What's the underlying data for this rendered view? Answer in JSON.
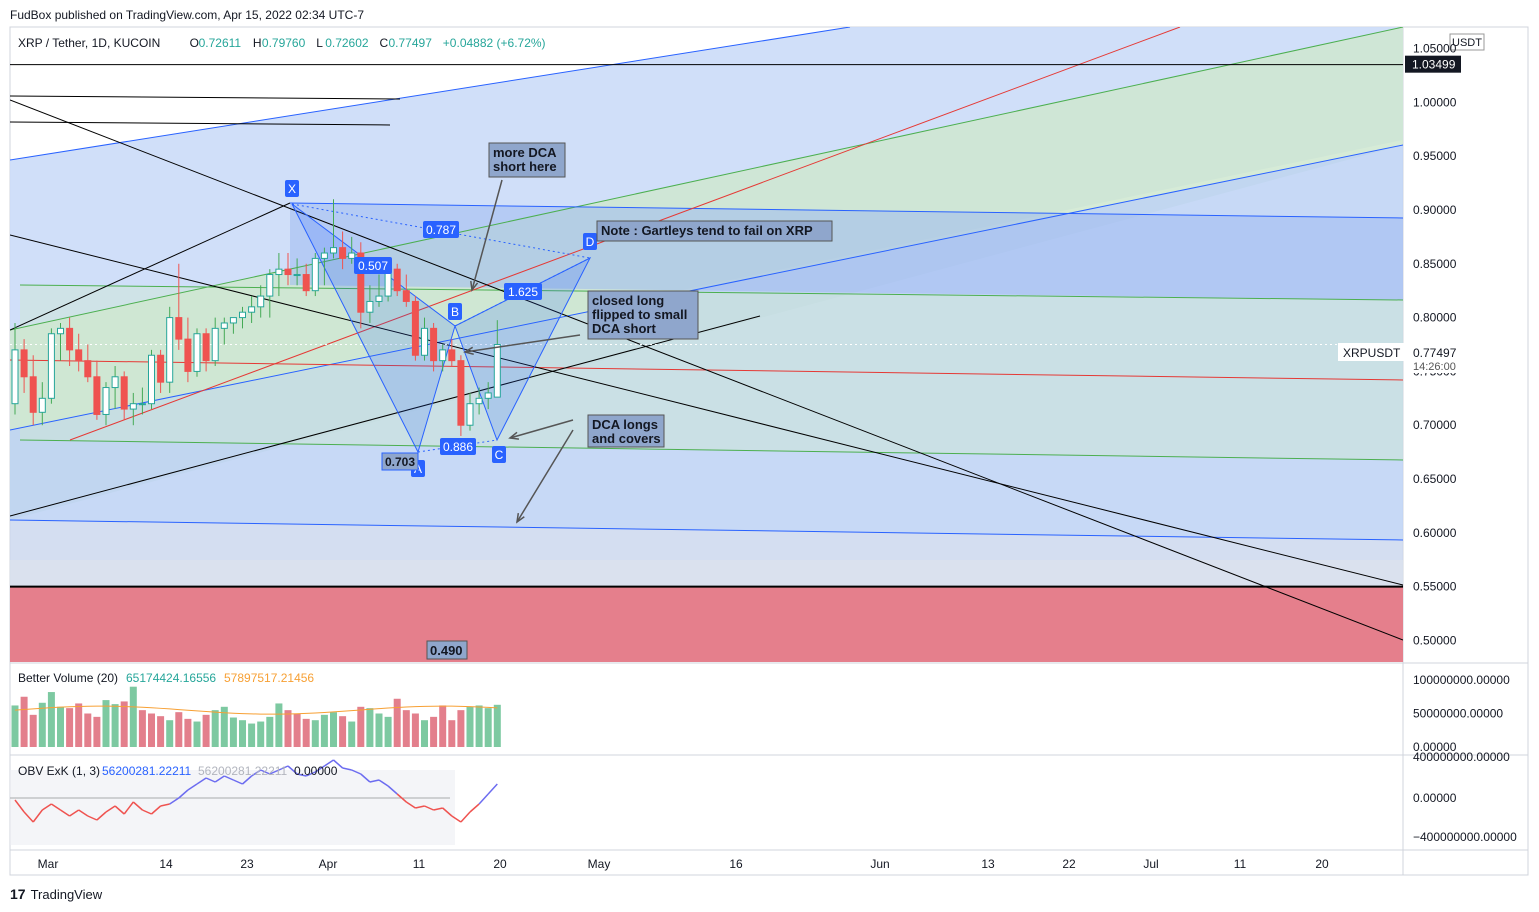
{
  "header": {
    "published": "FudBox published on TradingView.com, Apr 15, 2022 02:34 UTC-7"
  },
  "footer": {
    "brand": "TradingView",
    "logo_glyph": "17"
  },
  "legend": {
    "symbol": "XRP / Tether, 1D, KUCOIN",
    "open_label": "O",
    "open": "0.72611",
    "high_label": "H",
    "high": "0.79760",
    "low_label": "L",
    "low": "0.72602",
    "close_label": "C",
    "close": "0.77497",
    "change": "+0.04882 (+6.72%)"
  },
  "price_axis": {
    "currency": "USDT",
    "ticks": [
      "1.05000",
      "1.00000",
      "0.95000",
      "0.90000",
      "0.85000",
      "0.80000",
      "0.75000",
      "0.70000",
      "0.65000",
      "0.60000",
      "0.55000",
      "0.50000"
    ],
    "line_tag": "1.03499",
    "symbol_tag": "XRPUSDT",
    "last_price": "0.77497",
    "countdown": "14:26:00"
  },
  "time_axis": {
    "ticks": [
      "Mar",
      "14",
      "23",
      "Apr",
      "11",
      "20",
      "May",
      "16",
      "Jun",
      "13",
      "22",
      "Jul",
      "11",
      "20"
    ]
  },
  "pattern_points": {
    "x": "X",
    "a": "A",
    "b": "B",
    "c": "C",
    "d": "D"
  },
  "ratios": {
    "xb": "0.787",
    "ab": "0.507",
    "bd": "1.625",
    "ac": "0.886",
    "a_price": "0.703"
  },
  "zone_label": "0.490",
  "annotations": {
    "more_dca_1": "more DCA",
    "more_dca_2": "short here",
    "note": "Note : Gartleys tend to fail on XRP",
    "closed_1": "closed long",
    "closed_2": "flipped to small",
    "closed_3": "DCA short",
    "dca_longs_1": "DCA longs",
    "dca_longs_2": "and covers"
  },
  "volume_panel": {
    "title": "Better Volume (20)",
    "value1": "65174424.16556",
    "value2": "57897517.21456",
    "ticks": [
      "100000000.00000",
      "50000000.00000",
      "0.00000"
    ]
  },
  "obv_panel": {
    "title": "OBV ExK (1, 3)",
    "value1": "56200281.22211",
    "value2": "56200281.22211",
    "value3": "0.00000",
    "ticks": [
      "400000000.00000",
      "0.00000",
      "−400000000.00000"
    ]
  },
  "colors": {
    "up": "#26a69a",
    "down": "#ef5350",
    "vol_up": "#7dc9a1",
    "vol_down": "#e37f8c",
    "label_blue": "#2962ff"
  },
  "chart_data": {
    "type": "candlestick",
    "candles": [
      {
        "o": 0.72,
        "h": 0.795,
        "l": 0.71,
        "c": 0.77
      },
      {
        "o": 0.77,
        "h": 0.78,
        "l": 0.73,
        "c": 0.745
      },
      {
        "o": 0.745,
        "h": 0.765,
        "l": 0.7,
        "c": 0.712
      },
      {
        "o": 0.712,
        "h": 0.74,
        "l": 0.7,
        "c": 0.725
      },
      {
        "o": 0.725,
        "h": 0.79,
        "l": 0.72,
        "c": 0.785
      },
      {
        "o": 0.785,
        "h": 0.795,
        "l": 0.76,
        "c": 0.79
      },
      {
        "o": 0.79,
        "h": 0.8,
        "l": 0.755,
        "c": 0.77
      },
      {
        "o": 0.77,
        "h": 0.785,
        "l": 0.75,
        "c": 0.76
      },
      {
        "o": 0.76,
        "h": 0.775,
        "l": 0.74,
        "c": 0.745
      },
      {
        "o": 0.745,
        "h": 0.76,
        "l": 0.705,
        "c": 0.71
      },
      {
        "o": 0.71,
        "h": 0.74,
        "l": 0.7,
        "c": 0.735
      },
      {
        "o": 0.735,
        "h": 0.755,
        "l": 0.715,
        "c": 0.745
      },
      {
        "o": 0.745,
        "h": 0.75,
        "l": 0.705,
        "c": 0.715
      },
      {
        "o": 0.715,
        "h": 0.73,
        "l": 0.7,
        "c": 0.72
      },
      {
        "o": 0.72,
        "h": 0.735,
        "l": 0.71,
        "c": 0.72
      },
      {
        "o": 0.72,
        "h": 0.77,
        "l": 0.715,
        "c": 0.765
      },
      {
        "o": 0.765,
        "h": 0.77,
        "l": 0.73,
        "c": 0.74
      },
      {
        "o": 0.74,
        "h": 0.81,
        "l": 0.73,
        "c": 0.8
      },
      {
        "o": 0.8,
        "h": 0.85,
        "l": 0.77,
        "c": 0.78
      },
      {
        "o": 0.78,
        "h": 0.8,
        "l": 0.74,
        "c": 0.75
      },
      {
        "o": 0.75,
        "h": 0.79,
        "l": 0.745,
        "c": 0.785
      },
      {
        "o": 0.785,
        "h": 0.79,
        "l": 0.75,
        "c": 0.76
      },
      {
        "o": 0.76,
        "h": 0.8,
        "l": 0.755,
        "c": 0.79
      },
      {
        "o": 0.79,
        "h": 0.8,
        "l": 0.775,
        "c": 0.795
      },
      {
        "o": 0.795,
        "h": 0.8,
        "l": 0.785,
        "c": 0.8
      },
      {
        "o": 0.8,
        "h": 0.81,
        "l": 0.79,
        "c": 0.805
      },
      {
        "o": 0.805,
        "h": 0.82,
        "l": 0.795,
        "c": 0.81
      },
      {
        "o": 0.81,
        "h": 0.83,
        "l": 0.8,
        "c": 0.82
      },
      {
        "o": 0.82,
        "h": 0.845,
        "l": 0.8,
        "c": 0.84
      },
      {
        "o": 0.84,
        "h": 0.86,
        "l": 0.82,
        "c": 0.845
      },
      {
        "o": 0.845,
        "h": 0.86,
        "l": 0.83,
        "c": 0.84
      },
      {
        "o": 0.84,
        "h": 0.855,
        "l": 0.83,
        "c": 0.84
      },
      {
        "o": 0.84,
        "h": 0.85,
        "l": 0.82,
        "c": 0.825
      },
      {
        "o": 0.825,
        "h": 0.86,
        "l": 0.82,
        "c": 0.855
      },
      {
        "o": 0.855,
        "h": 0.865,
        "l": 0.83,
        "c": 0.86
      },
      {
        "o": 0.86,
        "h": 0.91,
        "l": 0.855,
        "c": 0.865
      },
      {
        "o": 0.865,
        "h": 0.88,
        "l": 0.845,
        "c": 0.855
      },
      {
        "o": 0.855,
        "h": 0.875,
        "l": 0.85,
        "c": 0.86
      },
      {
        "o": 0.86,
        "h": 0.87,
        "l": 0.79,
        "c": 0.805
      },
      {
        "o": 0.805,
        "h": 0.83,
        "l": 0.795,
        "c": 0.815
      },
      {
        "o": 0.815,
        "h": 0.84,
        "l": 0.81,
        "c": 0.82
      },
      {
        "o": 0.82,
        "h": 0.85,
        "l": 0.815,
        "c": 0.845
      },
      {
        "o": 0.845,
        "h": 0.85,
        "l": 0.82,
        "c": 0.825
      },
      {
        "o": 0.825,
        "h": 0.84,
        "l": 0.81,
        "c": 0.815
      },
      {
        "o": 0.815,
        "h": 0.82,
        "l": 0.76,
        "c": 0.765
      },
      {
        "o": 0.765,
        "h": 0.8,
        "l": 0.76,
        "c": 0.79
      },
      {
        "o": 0.79,
        "h": 0.795,
        "l": 0.75,
        "c": 0.76
      },
      {
        "o": 0.76,
        "h": 0.775,
        "l": 0.75,
        "c": 0.77
      },
      {
        "o": 0.77,
        "h": 0.78,
        "l": 0.755,
        "c": 0.76
      },
      {
        "o": 0.76,
        "h": 0.765,
        "l": 0.69,
        "c": 0.7
      },
      {
        "o": 0.7,
        "h": 0.73,
        "l": 0.695,
        "c": 0.72
      },
      {
        "o": 0.72,
        "h": 0.735,
        "l": 0.71,
        "c": 0.725
      },
      {
        "o": 0.725,
        "h": 0.74,
        "l": 0.715,
        "c": 0.73
      },
      {
        "o": 0.72611,
        "h": 0.7976,
        "l": 0.72602,
        "c": 0.77497
      }
    ],
    "volume_values": [
      62,
      75,
      48,
      66,
      82,
      60,
      58,
      65,
      50,
      45,
      70,
      64,
      68,
      90,
      55,
      50,
      46,
      40,
      52,
      42,
      38,
      48,
      55,
      60,
      44,
      40,
      35,
      38,
      45,
      65,
      55,
      50,
      42,
      40,
      48,
      52,
      46,
      38,
      60,
      58,
      50,
      45,
      72,
      55,
      50,
      40,
      45,
      62,
      40,
      55,
      60,
      62,
      58,
      63
    ],
    "volume_up": [
      true,
      false,
      false,
      true,
      true,
      true,
      false,
      false,
      false,
      false,
      true,
      true,
      false,
      true,
      false,
      false,
      false,
      true,
      false,
      false,
      true,
      false,
      true,
      true,
      true,
      true,
      true,
      true,
      true,
      true,
      false,
      false,
      false,
      true,
      true,
      true,
      false,
      true,
      false,
      true,
      true,
      true,
      false,
      false,
      false,
      true,
      false,
      false,
      false,
      false,
      true,
      true,
      true,
      true
    ],
    "obv_values": [
      -0.1,
      -0.7,
      -1.2,
      -0.6,
      -0.3,
      -0.6,
      -0.9,
      -0.6,
      -0.9,
      -1.1,
      -0.7,
      -0.4,
      -0.8,
      -0.2,
      -0.6,
      -0.8,
      -0.4,
      -0.3,
      0.0,
      0.4,
      0.7,
      1.0,
      0.8,
      1.1,
      0.9,
      0.7,
      1.1,
      1.4,
      1.2,
      1.4,
      1.6,
      1.2,
      1.1,
      1.3,
      1.6,
      1.9,
      1.5,
      1.4,
      1.2,
      0.8,
      0.9,
      0.6,
      0.2,
      -0.2,
      -0.5,
      -0.4,
      -0.6,
      -0.5,
      -0.9,
      -1.2,
      -0.7,
      -0.3,
      0.2,
      0.7
    ],
    "ylim": [
      0.48,
      1.07
    ],
    "resistance_line": 1.03499,
    "support_zone": [
      0.48,
      0.55
    ],
    "pattern": {
      "X": 0.912,
      "A": 0.688,
      "B": 0.8,
      "C": 0.692,
      "D": 0.865
    }
  }
}
